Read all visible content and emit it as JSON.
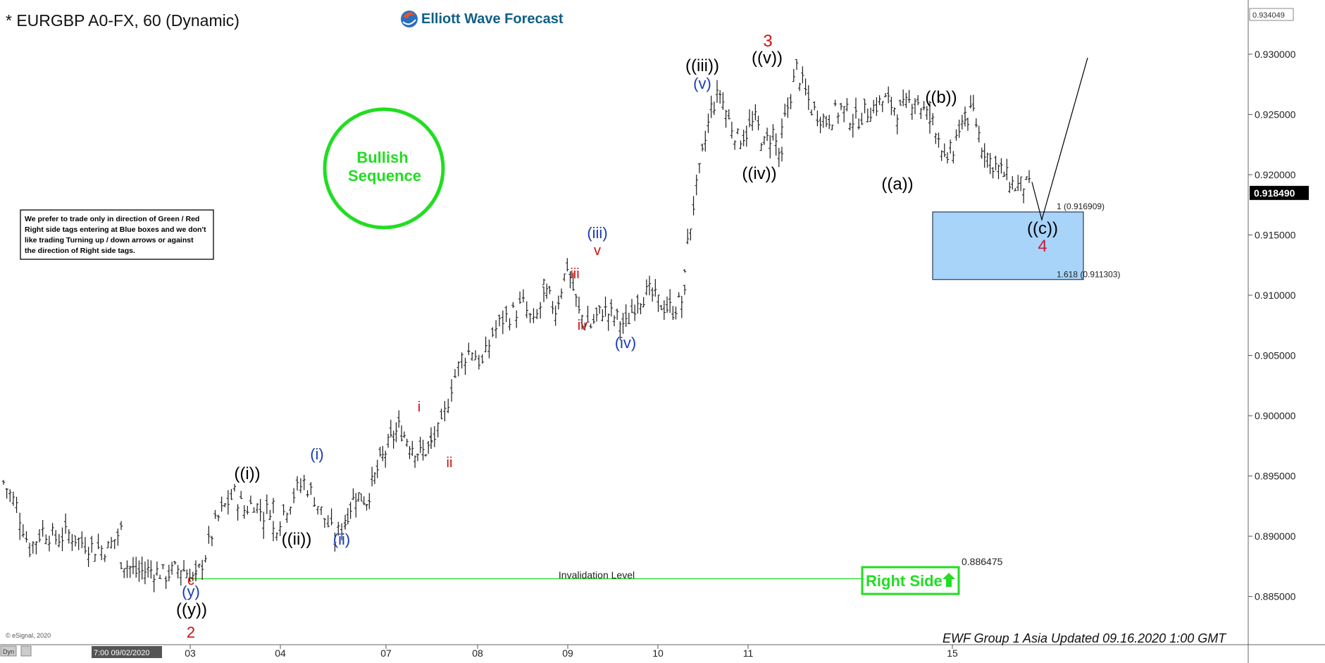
{
  "header": {
    "symbol_title": "* EURGBP A0-FX, 60 (Dynamic)",
    "brand": "Elliott Wave Forecast"
  },
  "badge": {
    "line1": "Bullish",
    "line2": "Sequence",
    "color": "#22dd22"
  },
  "note": [
    "We prefer to trade only in direction of Green / Red",
    "Right side tags entering at Blue boxes and we don't",
    "like trading Turning up / down arrows or against",
    "the direction of Right side tags."
  ],
  "box": {
    "fib1_label": "1 (0.916909)",
    "fib2_label": "1.618 (0.911303)",
    "color": "#a8d4fa"
  },
  "invalidation": {
    "value": 0.886475,
    "label": "Invalidation Level",
    "price_label": "0.886475",
    "color": "#22dd22"
  },
  "right_side": {
    "label": "Right Side",
    "color": "#22dd22"
  },
  "footer": {
    "update_text": "EWF Group 1 Asia Updated 09.16.2020 1:00 GMT",
    "copyright": "© eSignal, 2020",
    "dyn": "Dyn",
    "start_time": "7:00 09/02/2020"
  },
  "chart_data": {
    "type": "ohlc",
    "ylim": [
      0.881,
      0.9345
    ],
    "price_axis": {
      "ticks": [
        "0.930000",
        "0.925000",
        "0.920000",
        "0.915000",
        "0.910000",
        "0.905000",
        "0.900000",
        "0.895000",
        "0.890000",
        "0.885000"
      ],
      "top_label": "0.934049",
      "last_price": "0.918490"
    },
    "x_tick_labels": [
      "03",
      "04",
      "07",
      "08",
      "09",
      "10",
      "11",
      "15"
    ],
    "projection_end": 0.9297,
    "price_path": [
      [
        0.8945,
        0.8925,
        0.889,
        0.8905,
        0.8898,
        0.8902,
        0.8895,
        0.889,
        0.889,
        0.8905
      ],
      [
        0.888,
        0.887,
        0.8872,
        0.8868,
        0.8874,
        0.8865
      ],
      [
        0.8865,
        0.8885,
        0.891,
        0.8925,
        0.8935,
        0.8922,
        0.8928,
        0.8918,
        0.8927
      ],
      [
        0.8905,
        0.892,
        0.8935,
        0.8945,
        0.8932,
        0.8915,
        0.8898,
        0.8912
      ],
      [
        0.8915,
        0.8935,
        0.893,
        0.8955,
        0.8975,
        0.899,
        0.8978,
        0.8968,
        0.8975
      ],
      [
        0.8978,
        0.899,
        0.9025,
        0.9048,
        0.9055,
        0.9042,
        0.9068,
        0.908,
        0.9085,
        0.9092,
        0.9075,
        0.9098
      ],
      [
        0.9105,
        0.9088,
        0.9125,
        0.9085,
        0.9075,
        0.9088,
        0.9082,
        0.9075,
        0.9098,
        0.9102,
        0.9092,
        0.9088,
        0.9098
      ],
      [
        0.9125,
        0.9175,
        0.9215,
        0.9255,
        0.9268,
        0.9245,
        0.923,
        0.9235,
        0.9245,
        0.9225,
        0.9235,
        0.921
      ],
      [
        0.9235,
        0.9288,
        0.9255,
        0.9245,
        0.9255,
        0.9245,
        0.9255,
        0.9262,
        0.9252,
        0.9265,
        0.9245
      ],
      [
        0.9255,
        0.9248,
        0.924,
        0.9232,
        0.9225,
        0.921,
        0.9205,
        0.9228,
        0.9215,
        0.9235,
        0.9228,
        0.924,
        0.9258
      ],
      [
        0.9245,
        0.9252,
        0.9225,
        0.9212,
        0.9205,
        0.9198,
        0.919,
        0.9192,
        0.9188
      ]
    ],
    "invalidation_level": 0.886475,
    "box_range": [
      0.916909,
      0.911303
    ],
    "wave_labels": [
      {
        "text": "((i))",
        "color": "#000000",
        "y": 0.8935
      },
      {
        "text": "((ii))",
        "color": "#000000",
        "y": 0.8899
      },
      {
        "text": "(i)",
        "color": "#1a3bb5",
        "y": 0.8955
      },
      {
        "text": "(ii)",
        "color": "#1a3bb5",
        "y": 0.8899
      },
      {
        "text": "c",
        "color": "#d01010",
        "y": 0.8862
      },
      {
        "text": "(y)",
        "color": "#1a3bb5",
        "y": 0.8862
      },
      {
        "text": "((y))",
        "color": "#000000",
        "y": 0.8862
      },
      {
        "text": "2",
        "color": "#d01010",
        "y": 0.8862
      },
      {
        "text": "i",
        "color": "#d01010",
        "y": 0.8995
      },
      {
        "text": "ii",
        "color": "#d01010",
        "y": 0.8965
      },
      {
        "text": "iii",
        "color": "#d01010",
        "y": 0.9105
      },
      {
        "text": "iv",
        "color": "#d01010",
        "y": 0.9082
      },
      {
        "text": "v",
        "color": "#d01010",
        "y": 0.913
      },
      {
        "text": "(iii)",
        "color": "#1a3bb5",
        "y": 0.913
      },
      {
        "text": "(iv)",
        "color": "#1a3bb5",
        "y": 0.9065
      },
      {
        "text": "(v)",
        "color": "#1a3bb5",
        "y": 0.9271
      },
      {
        "text": "((iii))",
        "color": "#000000",
        "y": 0.9271
      },
      {
        "text": "((iv))",
        "color": "#000000",
        "y": 0.9205
      },
      {
        "text": "3",
        "color": "#d01010",
        "y": 0.9292
      },
      {
        "text": "((v))",
        "color": "#000000",
        "y": 0.9292
      },
      {
        "text": "((a))",
        "color": "#000000",
        "y": 0.9198
      },
      {
        "text": "((b))",
        "color": "#000000",
        "y": 0.9262
      },
      {
        "text": "((c))",
        "color": "#000000",
        "y": 0.9165
      },
      {
        "text": "4",
        "color": "#c41e3a",
        "y": 0.9165
      }
    ]
  }
}
